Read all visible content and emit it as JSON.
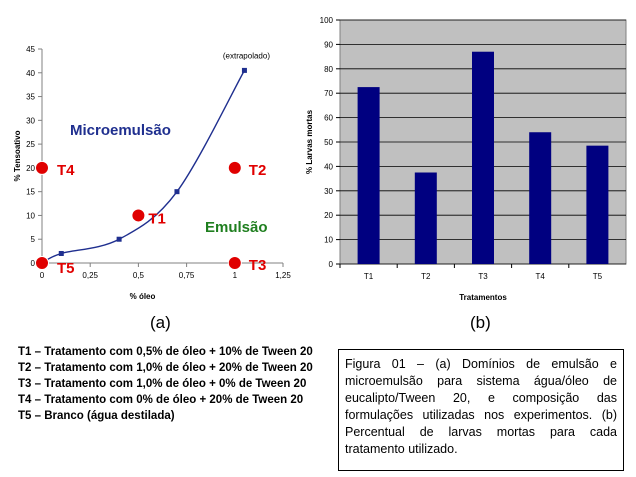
{
  "chart_data": [
    {
      "type": "scatter",
      "ylabel": "% Tensoativo",
      "xlabel": "% óleo",
      "xlim": [
        0,
        1.25
      ],
      "ylim": [
        0,
        45
      ],
      "x_ticks": [
        "0",
        "0,25",
        "0,5",
        "0,75",
        "1",
        "1,25"
      ],
      "y_ticks": [
        "0",
        "5",
        "10",
        "15",
        "20",
        "25",
        "30",
        "35",
        "40",
        "45"
      ],
      "grid": false,
      "boundary_curve": {
        "x": [
          0,
          0.1,
          0.4,
          0.7,
          1.05
        ],
        "y": [
          0,
          2,
          5,
          15,
          40.5
        ],
        "annotation": "(extrapolado)"
      },
      "region_labels": [
        {
          "text": "Microemulsão",
          "color": "#1f2f8f"
        },
        {
          "text": "Emulsão",
          "color": "#1f7f1f"
        }
      ],
      "treatments": [
        {
          "label": "T1",
          "x": 0.5,
          "y": 10
        },
        {
          "label": "T2",
          "x": 1.0,
          "y": 20
        },
        {
          "label": "T3",
          "x": 1.0,
          "y": 0
        },
        {
          "label": "T4",
          "x": 0.0,
          "y": 20
        },
        {
          "label": "T5",
          "x": 0.0,
          "y": 0
        }
      ],
      "panel_label": "(a)"
    },
    {
      "type": "bar",
      "categories": [
        "T1",
        "T2",
        "T3",
        "T4",
        "T5"
      ],
      "values": [
        72.5,
        37.5,
        87,
        54,
        48.5
      ],
      "ylabel": "% Larvas mortas",
      "xlabel": "Tratamentos",
      "ylim": [
        0,
        100
      ],
      "y_ticks": [
        "0",
        "10",
        "20",
        "30",
        "40",
        "50",
        "60",
        "70",
        "80",
        "90",
        "100"
      ],
      "grid": true,
      "panel_label": "(b)"
    }
  ],
  "colors": {
    "curve": "#1f2f8f",
    "markers": "#e00000",
    "marker_labels": "#e00000",
    "bars": "#000080",
    "plot_area": "#c0c0c0"
  },
  "legend": [
    "T1 – Tratamento com 0,5% de óleo + 10% de Tween 20",
    "T2 – Tratamento com 1,0% de óleo + 20% de Tween 20",
    "T3 – Tratamento com 1,0% de óleo + 0% de Tween 20",
    "T4 – Tratamento com 0% de óleo + 20% de Tween 20",
    "T5 – Branco (água destilada)"
  ],
  "caption": "Figura 01 – (a) Domínios de emulsão e microemulsão para sistema água/óleo de eucalipto/Tween 20, e composição das formulações utilizadas nos experimentos. (b) Percentual de larvas mortas para cada tratamento utilizado."
}
